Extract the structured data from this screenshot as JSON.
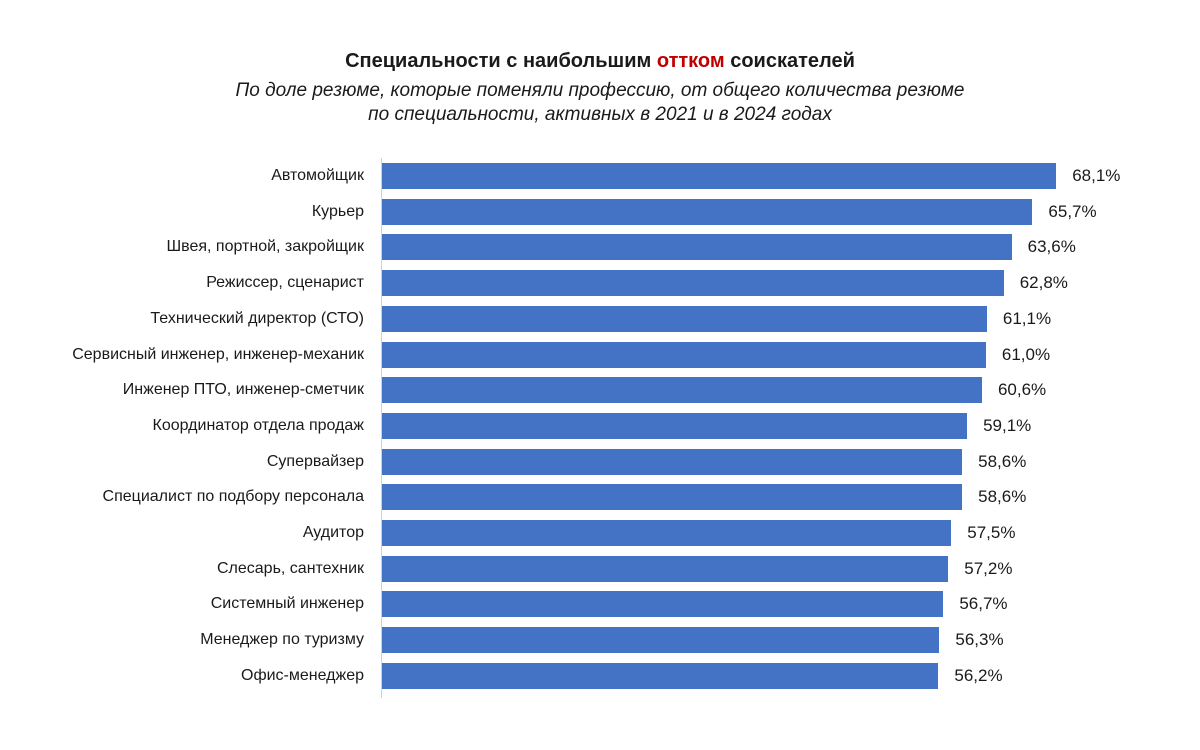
{
  "header": {
    "title_pre": "Специальности с наибольшим ",
    "title_highlight": "оттком",
    "title_post": " соискателей",
    "subtitle_line1": "По доле резюме, которые поменяли профессию, от общего количества резюме",
    "subtitle_line2": "по специальности, активных в 2021 и в 2024 годах"
  },
  "colors": {
    "bar": "#4472c4",
    "highlight": "#c00000",
    "text": "#1a1a1a"
  },
  "chart_data": {
    "type": "bar",
    "orientation": "horizontal",
    "title": "Специальности с наибольшим оттком соискателей",
    "subtitle": "По доле резюме, которые поменяли профессию, от общего количества резюме по специальности, активных в 2021 и в 2024 годах",
    "xlabel": "",
    "ylabel": "",
    "unit": "%",
    "grid": false,
    "legend": null,
    "categories": [
      "Автомойщик",
      "Курьер",
      "Швея, портной, закройщик",
      "Режиссер, сценарист",
      "Технический директор (СТО)",
      "Сервисный инженер, инженер-механик",
      "Инженер ПТО, инженер-сметчик",
      "Координатор отдела продаж",
      "Супервайзер",
      "Специалист по подбору персонала",
      "Аудитор",
      "Слесарь, сантехник",
      "Системный инженер",
      "Менеджер по туризму",
      "Офис-менеджер"
    ],
    "values": [
      68.1,
      65.7,
      63.6,
      62.8,
      61.1,
      61.0,
      60.6,
      59.1,
      58.6,
      58.6,
      57.5,
      57.2,
      56.7,
      56.3,
      56.2
    ],
    "value_labels": [
      "68,1%",
      "65,7%",
      "63,6%",
      "62,8%",
      "61,1%",
      "61,0%",
      "60,6%",
      "59,1%",
      "58,6%",
      "58,6%",
      "57,5%",
      "57,2%",
      "56,7%",
      "56,3%",
      "56,2%"
    ]
  }
}
